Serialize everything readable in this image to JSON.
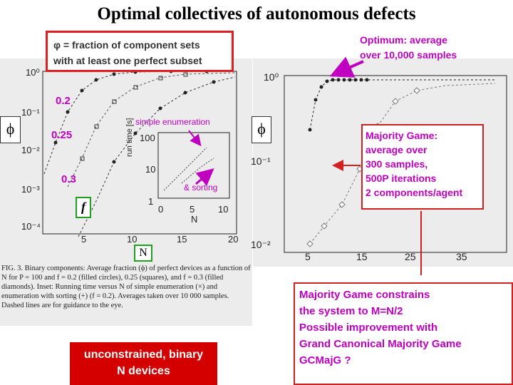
{
  "title": "Optimal collectives of autonomous defects",
  "definition": {
    "line1": "φ = fraction of component sets",
    "line2": "with at least one perfect subset"
  },
  "optimum": {
    "line1": "Optimum: average",
    "line2": "over 10,000 samples"
  },
  "phi_symbol": "ϕ",
  "f_values": [
    "0.2",
    "0.25",
    "0.3"
  ],
  "f_label": "f",
  "N_label": "N",
  "left_plot": {
    "y_ticks": [
      "10⁰",
      "10⁻¹",
      "10⁻²",
      "10⁻³",
      "10⁻⁴"
    ],
    "x_ticks": [
      "5",
      "10",
      "15",
      "20"
    ],
    "inset": {
      "y_label": "run time [s]",
      "y_ticks": [
        "100",
        "10",
        "1"
      ],
      "x_ticks": [
        "0",
        "5",
        "10"
      ],
      "x_label": "N",
      "note_simple": "simple enumeration",
      "note_sort": "& sorting"
    },
    "caption": "FIG. 3. Binary components: Average fraction (ϕ) of perfect devices as a function of N for P = 100 and f = 0.2 (filled circles), 0.25 (squares), and f = 0.3 (filled diamonds). Inset: Running time versus N of simple enumeration (×) and enumeration with sorting (+) (f = 0.2). Averages taken over 10 000 samples. Dashed lines are for guidance to the eye."
  },
  "right_plot": {
    "y_ticks": [
      "10⁰",
      "10⁻¹",
      "10⁻²"
    ],
    "x_ticks": [
      "5",
      "15",
      "25",
      "35"
    ]
  },
  "majority_game": {
    "lines": [
      "Majority Game:",
      "average over",
      "300 samples,",
      "500P iterations",
      "2 components/agent"
    ]
  },
  "constraint": {
    "lines": [
      "Majority Game constrains",
      "the system to  M=N/2",
      "Possible improvement with",
      "Grand Canonical Majority Game",
      "GCMajG ?"
    ]
  },
  "unconstrained": {
    "line1": "unconstrained, binary",
    "line2": "N  devices"
  },
  "colors": {
    "accent_magenta": "#c000c0",
    "box_red": "#e02020",
    "box_green": "#20a020",
    "label_bg_red": "#d40000"
  }
}
